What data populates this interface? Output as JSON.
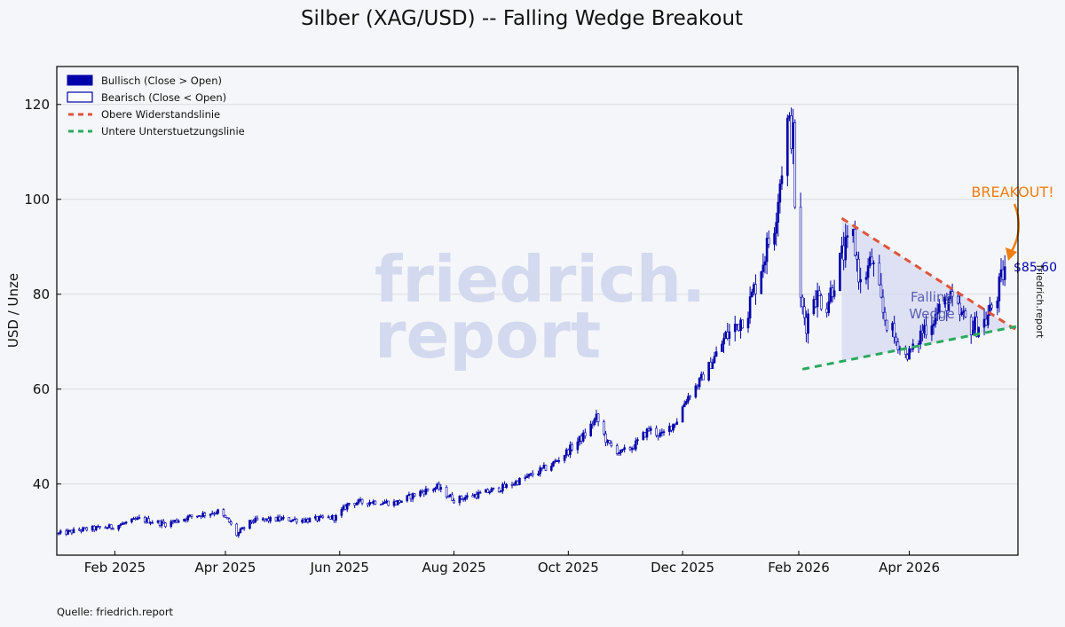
{
  "chart_data": {
    "type": "candlestick",
    "title": "Silber (XAG/USD) -- Falling Wedge Breakout",
    "xlabel": "",
    "ylabel": "USD / Unze",
    "xlim": [
      "2025-01-01",
      "2026-05-29"
    ],
    "ylim": [
      25,
      128
    ],
    "x_ticks": [
      {
        "date": "2025-02-01",
        "label": "Feb 2025"
      },
      {
        "date": "2025-04-01",
        "label": "Apr 2025"
      },
      {
        "date": "2025-06-01",
        "label": "Jun 2025"
      },
      {
        "date": "2025-08-01",
        "label": "Aug 2025"
      },
      {
        "date": "2025-10-01",
        "label": "Oct 2025"
      },
      {
        "date": "2025-12-01",
        "label": "Dec 2025"
      },
      {
        "date": "2026-02-01",
        "label": "Feb 2026"
      },
      {
        "date": "2026-04-01",
        "label": "Apr 2026"
      }
    ],
    "y_ticks": [
      40,
      60,
      80,
      100,
      120
    ],
    "grid": true,
    "legend_position": "top-left",
    "legend": [
      {
        "label": "Bullisch (Close > Open)",
        "kind": "filled-box",
        "color": "#0000aa"
      },
      {
        "label": "Bearisch (Close < Open)",
        "kind": "open-box",
        "color": "#0000aa"
      },
      {
        "label": "Obere Widerstandslinie",
        "kind": "dashed-line",
        "color": "#e0533a"
      },
      {
        "label": "Untere Unterstuetzungslinie",
        "kind": "dashed-line",
        "color": "#2aaa5e"
      }
    ],
    "price_path": [
      [
        "2025-01-02",
        29.5
      ],
      [
        "2025-01-15",
        30.4
      ],
      [
        "2025-01-31",
        31.0
      ],
      [
        "2025-02-14",
        32.6
      ],
      [
        "2025-02-28",
        31.6
      ],
      [
        "2025-03-14",
        33.2
      ],
      [
        "2025-03-28",
        34.2
      ],
      [
        "2025-04-03",
        32.0
      ],
      [
        "2025-04-07",
        29.3
      ],
      [
        "2025-04-15",
        32.2
      ],
      [
        "2025-04-30",
        32.6
      ],
      [
        "2025-05-15",
        32.4
      ],
      [
        "2025-05-30",
        33.0
      ],
      [
        "2025-06-06",
        36.0
      ],
      [
        "2025-06-20",
        36.3
      ],
      [
        "2025-07-01",
        36.0
      ],
      [
        "2025-07-14",
        38.3
      ],
      [
        "2025-07-23",
        39.3
      ],
      [
        "2025-08-01",
        36.7
      ],
      [
        "2025-08-15",
        37.9
      ],
      [
        "2025-08-29",
        39.5
      ],
      [
        "2025-09-10",
        41.6
      ],
      [
        "2025-09-22",
        44.0
      ],
      [
        "2025-10-01",
        47.0
      ],
      [
        "2025-10-10",
        50.5
      ],
      [
        "2025-10-16",
        54.0
      ],
      [
        "2025-10-22",
        48.5
      ],
      [
        "2025-10-29",
        46.5
      ],
      [
        "2025-11-05",
        48.0
      ],
      [
        "2025-11-13",
        51.5
      ],
      [
        "2025-11-20",
        50.2
      ],
      [
        "2025-11-28",
        53.5
      ],
      [
        "2025-12-03",
        58.0
      ],
      [
        "2025-12-10",
        61.5
      ],
      [
        "2025-12-17",
        66.0
      ],
      [
        "2025-12-24",
        71.0
      ],
      [
        "2025-12-29",
        73.0
      ],
      [
        "2026-01-05",
        77.0
      ],
      [
        "2026-01-12",
        86.0
      ],
      [
        "2026-01-19",
        95.0
      ],
      [
        "2026-01-26",
        116.0
      ],
      [
        "2026-01-29",
        113.0
      ],
      [
        "2026-01-31",
        86.0
      ],
      [
        "2026-02-02",
        78.0
      ],
      [
        "2026-02-05",
        74.0
      ],
      [
        "2026-02-09",
        80.0
      ],
      [
        "2026-02-16",
        78.0
      ],
      [
        "2026-02-24",
        88.0
      ],
      [
        "2026-03-02",
        92.0
      ],
      [
        "2026-03-06",
        82.0
      ],
      [
        "2026-03-12",
        87.0
      ],
      [
        "2026-03-18",
        76.0
      ],
      [
        "2026-03-25",
        70.0
      ],
      [
        "2026-03-30",
        67.0
      ],
      [
        "2026-04-03",
        68.5
      ],
      [
        "2026-04-09",
        73.0
      ],
      [
        "2026-04-16",
        76.0
      ],
      [
        "2026-04-22",
        79.0
      ],
      [
        "2026-04-28",
        75.5
      ],
      [
        "2026-05-05",
        73.0
      ],
      [
        "2026-05-12",
        74.5
      ],
      [
        "2026-05-18",
        80.0
      ],
      [
        "2026-05-22",
        85.6
      ]
    ],
    "resistance_line": {
      "from": [
        "2026-02-24",
        96.0
      ],
      "to": [
        "2026-05-28",
        72.5
      ],
      "color": "#e0533a"
    },
    "support_line": {
      "from": [
        "2026-02-03",
        64.2
      ],
      "to": [
        "2026-05-28",
        73.2
      ],
      "color": "#2aaa5e"
    },
    "wedge_fill_color": "#d4d9f0",
    "candle_color": "#0000aa",
    "annotations": {
      "wedge_label": "Falling\nWedge",
      "breakout_label": "BREAKOUT!",
      "breakout_color": "#f07d10",
      "last_price_label": "$85.60"
    },
    "side_label": "friedrich.report",
    "source": "Quelle: friedrich.report",
    "watermark": [
      "friedrich.",
      "report"
    ]
  }
}
